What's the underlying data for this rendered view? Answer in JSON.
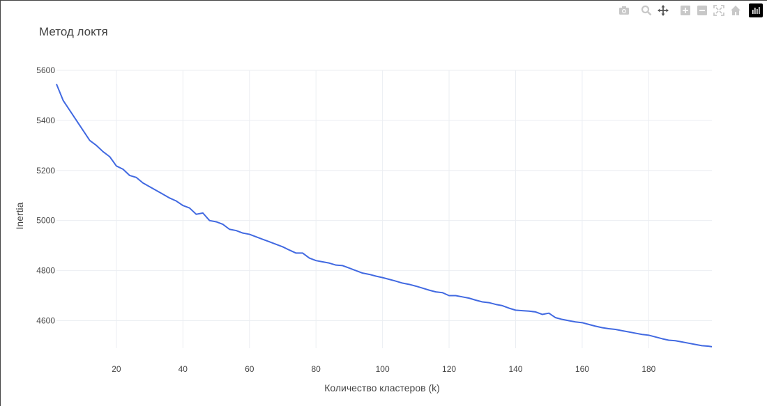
{
  "colors": {
    "line": "#4169e1",
    "grid": "#ebeef2",
    "text": "#444444",
    "modebar_icon": "#c8c8c8"
  },
  "modebar": {
    "icons": [
      "camera-icon",
      "zoom-icon",
      "pan-icon",
      "zoom-in-icon",
      "zoom-out-icon",
      "autoscale-icon",
      "reset-axes-icon",
      "plotly-logo-icon"
    ]
  },
  "chart_data": {
    "type": "line",
    "title": "Метод локтя",
    "xlabel": "Количество кластеров (k)",
    "ylabel": "Inertia",
    "xlim": [
      2,
      199
    ],
    "ylim": [
      4490,
      5600
    ],
    "xticks": [
      20,
      40,
      60,
      80,
      100,
      120,
      140,
      160,
      180
    ],
    "yticks": [
      4600,
      4800,
      5000,
      5200,
      5400,
      5600
    ],
    "grid": true,
    "series": [
      {
        "x": [
          2,
          4,
          6,
          8,
          10,
          12,
          14,
          16,
          18,
          20,
          22,
          24,
          26,
          28,
          30,
          32,
          34,
          36,
          38,
          40,
          42,
          44,
          46,
          48,
          50,
          52,
          54,
          56,
          58,
          60,
          62,
          64,
          66,
          68,
          70,
          72,
          74,
          76,
          78,
          80,
          82,
          84,
          86,
          88,
          90,
          92,
          94,
          96,
          98,
          100,
          102,
          104,
          106,
          108,
          110,
          112,
          114,
          116,
          118,
          120,
          122,
          124,
          126,
          128,
          130,
          132,
          134,
          136,
          138,
          140,
          142,
          144,
          146,
          148,
          150,
          152,
          154,
          156,
          158,
          160,
          162,
          164,
          166,
          168,
          170,
          172,
          174,
          176,
          178,
          180,
          182,
          184,
          186,
          188,
          190,
          192,
          194,
          196,
          198,
          199
        ],
        "y": [
          5545,
          5480,
          5440,
          5400,
          5360,
          5320,
          5300,
          5275,
          5255,
          5218,
          5205,
          5180,
          5172,
          5150,
          5135,
          5120,
          5105,
          5090,
          5078,
          5060,
          5050,
          5025,
          5030,
          5000,
          4995,
          4985,
          4965,
          4960,
          4950,
          4945,
          4935,
          4925,
          4915,
          4905,
          4895,
          4882,
          4870,
          4870,
          4850,
          4840,
          4835,
          4830,
          4822,
          4820,
          4810,
          4800,
          4790,
          4785,
          4778,
          4772,
          4765,
          4758,
          4750,
          4745,
          4738,
          4730,
          4722,
          4715,
          4712,
          4700,
          4700,
          4695,
          4690,
          4682,
          4675,
          4672,
          4665,
          4660,
          4650,
          4642,
          4640,
          4638,
          4635,
          4625,
          4630,
          4612,
          4605,
          4600,
          4595,
          4592,
          4585,
          4578,
          4572,
          4568,
          4565,
          4560,
          4555,
          4550,
          4545,
          4542,
          4535,
          4528,
          4522,
          4520,
          4515,
          4510,
          4505,
          4500,
          4498,
          4496
        ]
      }
    ]
  }
}
